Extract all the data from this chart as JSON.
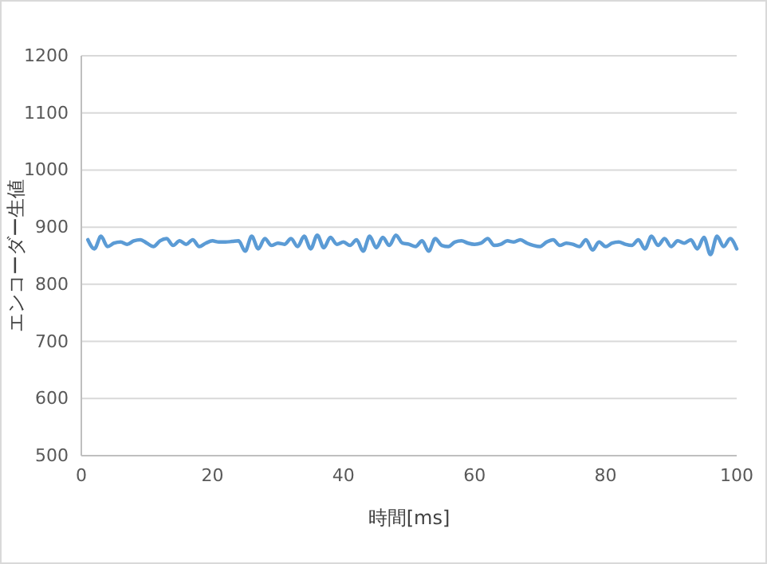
{
  "chart_data": {
    "type": "line",
    "xlabel": "時間[ms]",
    "ylabel": "エンコーダー生値",
    "x": [
      1,
      2,
      3,
      4,
      5,
      6,
      7,
      8,
      9,
      10,
      11,
      12,
      13,
      14,
      15,
      16,
      17,
      18,
      19,
      20,
      21,
      22,
      23,
      24,
      25,
      26,
      27,
      28,
      29,
      30,
      31,
      32,
      33,
      34,
      35,
      36,
      37,
      38,
      39,
      40,
      41,
      42,
      43,
      44,
      45,
      46,
      47,
      48,
      49,
      50,
      51,
      52,
      53,
      54,
      55,
      56,
      57,
      58,
      59,
      60,
      61,
      62,
      63,
      64,
      65,
      66,
      67,
      68,
      69,
      70,
      71,
      72,
      73,
      74,
      75,
      76,
      77,
      78,
      79,
      80,
      81,
      82,
      83,
      84,
      85,
      86,
      87,
      88,
      89,
      90,
      91,
      92,
      93,
      94,
      95,
      96,
      97,
      98,
      99,
      100
    ],
    "series": [
      {
        "color": "#5b9bd5",
        "values": [
          878,
          862,
          884,
          866,
          872,
          874,
          870,
          876,
          878,
          872,
          866,
          876,
          880,
          868,
          876,
          870,
          878,
          866,
          872,
          876,
          874,
          874,
          875,
          876,
          858,
          884,
          862,
          880,
          868,
          872,
          870,
          880,
          866,
          884,
          862,
          886,
          864,
          882,
          870,
          874,
          868,
          878,
          858,
          884,
          864,
          882,
          868,
          886,
          872,
          870,
          866,
          876,
          858,
          880,
          868,
          866,
          874,
          876,
          872,
          870,
          872,
          880,
          868,
          870,
          876,
          874,
          878,
          872,
          868,
          866,
          874,
          878,
          868,
          872,
          870,
          866,
          878,
          860,
          874,
          866,
          872,
          874,
          870,
          868,
          878,
          862,
          884,
          868,
          880,
          866,
          876,
          872,
          878,
          862,
          882,
          852,
          884,
          866,
          880,
          862
        ]
      }
    ],
    "xlim": [
      0,
      100
    ],
    "xticks": [
      0,
      20,
      40,
      60,
      80,
      100
    ],
    "ylim": [
      500,
      1200
    ],
    "yticks": [
      500,
      600,
      700,
      800,
      900,
      1000,
      1100,
      1200
    ],
    "grid": "y",
    "line_style": "solid",
    "marker": "none"
  }
}
